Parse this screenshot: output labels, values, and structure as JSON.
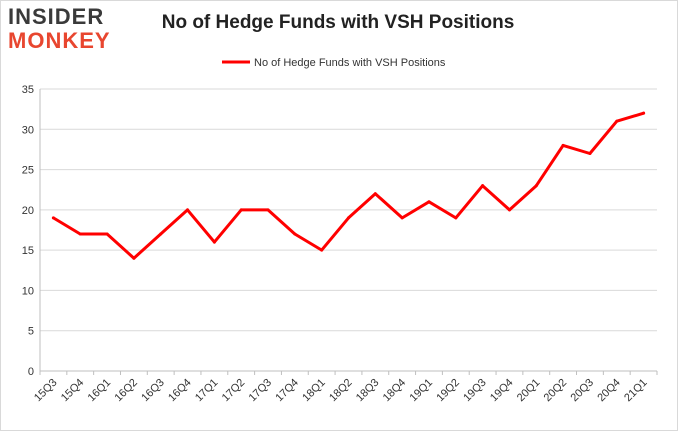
{
  "brand": {
    "line1": "INSIDER",
    "line2": "MONKEY"
  },
  "chart_data": {
    "type": "line",
    "title": "No of Hedge Funds with VSH Positions",
    "xlabel": "",
    "ylabel": "",
    "categories": [
      "15Q3",
      "15Q4",
      "16Q1",
      "16Q2",
      "16Q3",
      "16Q4",
      "17Q1",
      "17Q2",
      "17Q3",
      "17Q4",
      "18Q1",
      "18Q2",
      "18Q3",
      "18Q4",
      "19Q1",
      "19Q2",
      "19Q3",
      "19Q4",
      "20Q1",
      "20Q2",
      "20Q3",
      "20Q4",
      "21Q1"
    ],
    "series": [
      {
        "name": "No of Hedge Funds with VSH Positions",
        "color": "#ff0000",
        "values": [
          19,
          17,
          17,
          14,
          17,
          20,
          16,
          20,
          20,
          17,
          15,
          19,
          22,
          19,
          21,
          19,
          23,
          20,
          23,
          28,
          27,
          31,
          32
        ]
      }
    ],
    "ylim": [
      0,
      35
    ],
    "yticks": [
      0,
      5,
      10,
      15,
      20,
      25,
      30,
      35
    ],
    "grid": true,
    "legend": "top-center"
  }
}
